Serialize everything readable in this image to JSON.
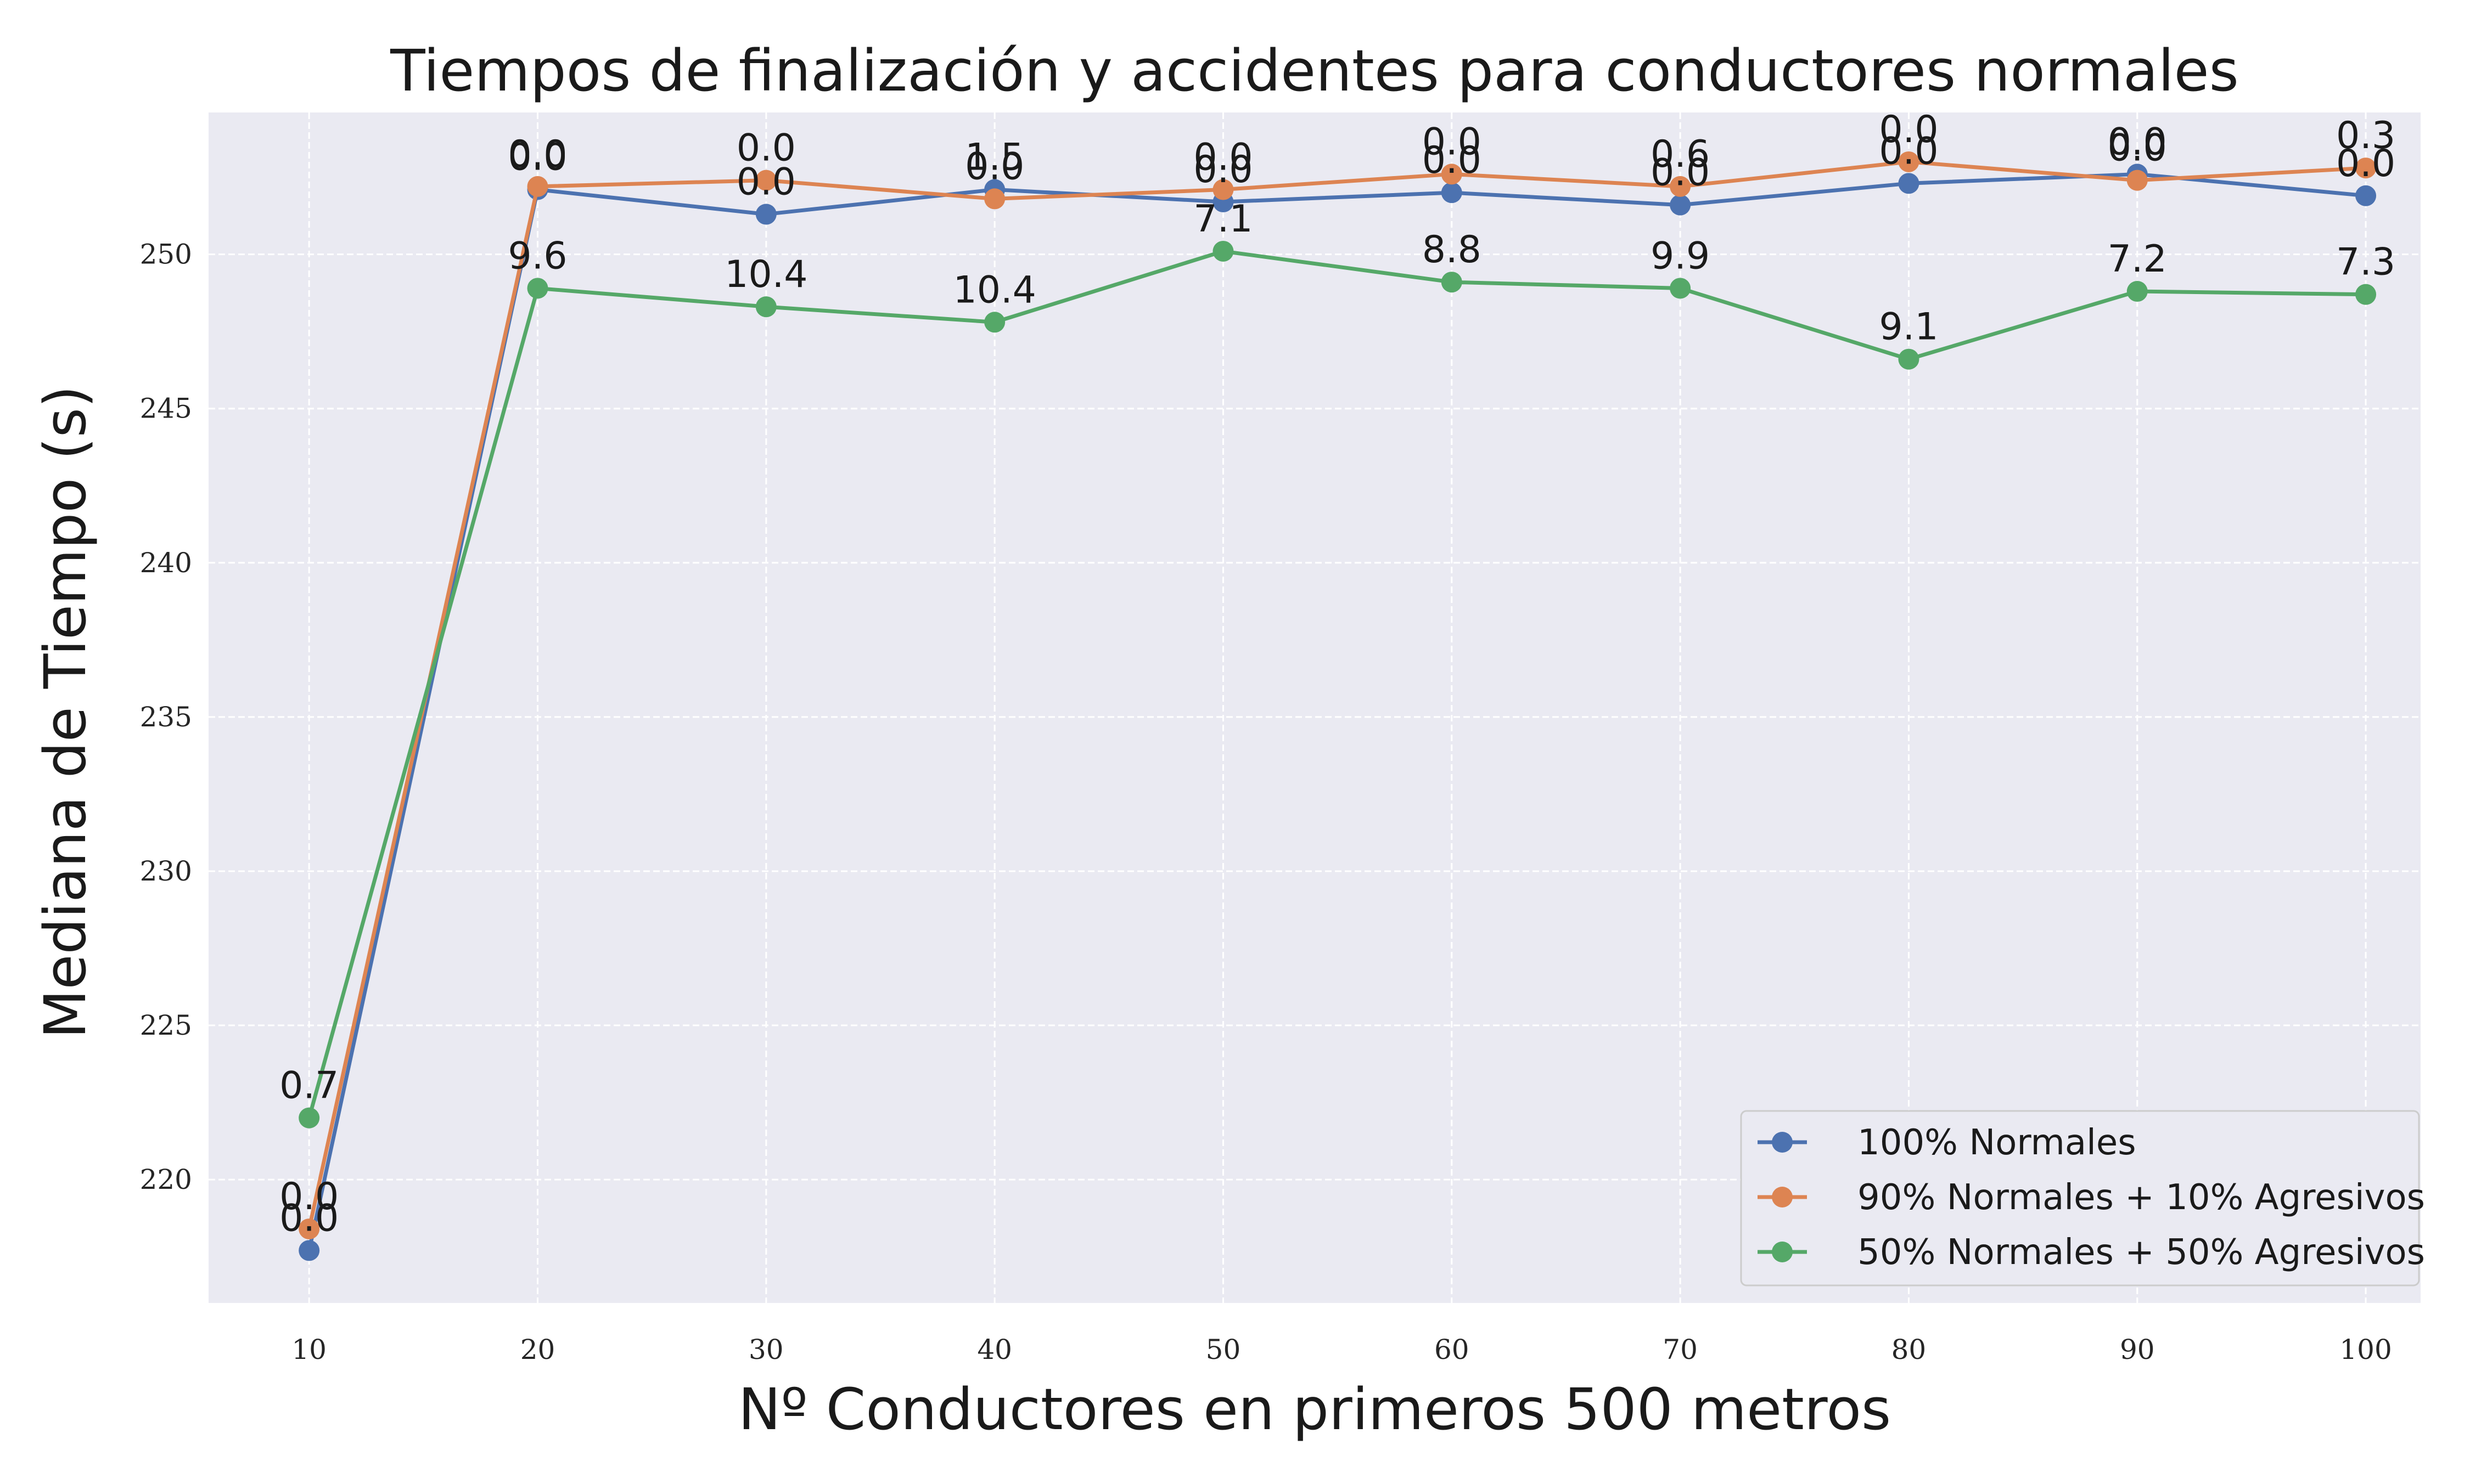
{
  "chart_data": {
    "type": "line",
    "title": "Tiempos de finalización y accidentes para conductores normales",
    "xlabel": "Nº Conductores en primeros 500 metros",
    "ylabel": "Mediana de Tiempo (s)",
    "x": [
      10,
      20,
      30,
      40,
      50,
      60,
      70,
      80,
      90,
      100
    ],
    "xticks": [
      "10",
      "20",
      "30",
      "40",
      "50",
      "60",
      "70",
      "80",
      "90",
      "100"
    ],
    "yticks": [
      220,
      225,
      230,
      235,
      240,
      245,
      250
    ],
    "xlim": [
      5.6,
      102.4
    ],
    "ylim": [
      216.0,
      254.6
    ],
    "grid": true,
    "legend_position": "bottom-right",
    "series": [
      {
        "name": "100% Normales",
        "color": "#4c72b0",
        "values": [
          217.7,
          252.1,
          251.3,
          252.1,
          251.7,
          252.0,
          251.6,
          252.3,
          252.6,
          251.9
        ],
        "labels": [
          "0.0",
          "0.0",
          "0.0",
          "1.5",
          "0.0",
          "0.0",
          "0.0",
          "0.0",
          "0.0",
          "0.0"
        ]
      },
      {
        "name": "90% Normales + 10% Agresivos",
        "color": "#dd8452",
        "values": [
          218.4,
          252.2,
          252.4,
          251.8,
          252.1,
          252.6,
          252.2,
          253.0,
          252.4,
          252.8
        ],
        "labels": [
          "0.0",
          "0.0",
          "0.0",
          "0.0",
          "0.0",
          "0.0",
          "0.6",
          "0.0",
          "0.0",
          "0.3"
        ]
      },
      {
        "name": "50% Normales + 50% Agresivos",
        "color": "#55a868",
        "values": [
          222.0,
          248.9,
          248.3,
          247.8,
          250.1,
          249.1,
          248.9,
          246.6,
          248.8,
          248.7
        ],
        "labels": [
          "0.7",
          "9.6",
          "10.4",
          "10.4",
          "7.1",
          "8.8",
          "9.9",
          "9.1",
          "7.2",
          "7.3"
        ]
      }
    ],
    "colors": {
      "plot_background": "#eaeaf2",
      "grid": "#ffffff",
      "legend_border": "#cccccc"
    }
  }
}
